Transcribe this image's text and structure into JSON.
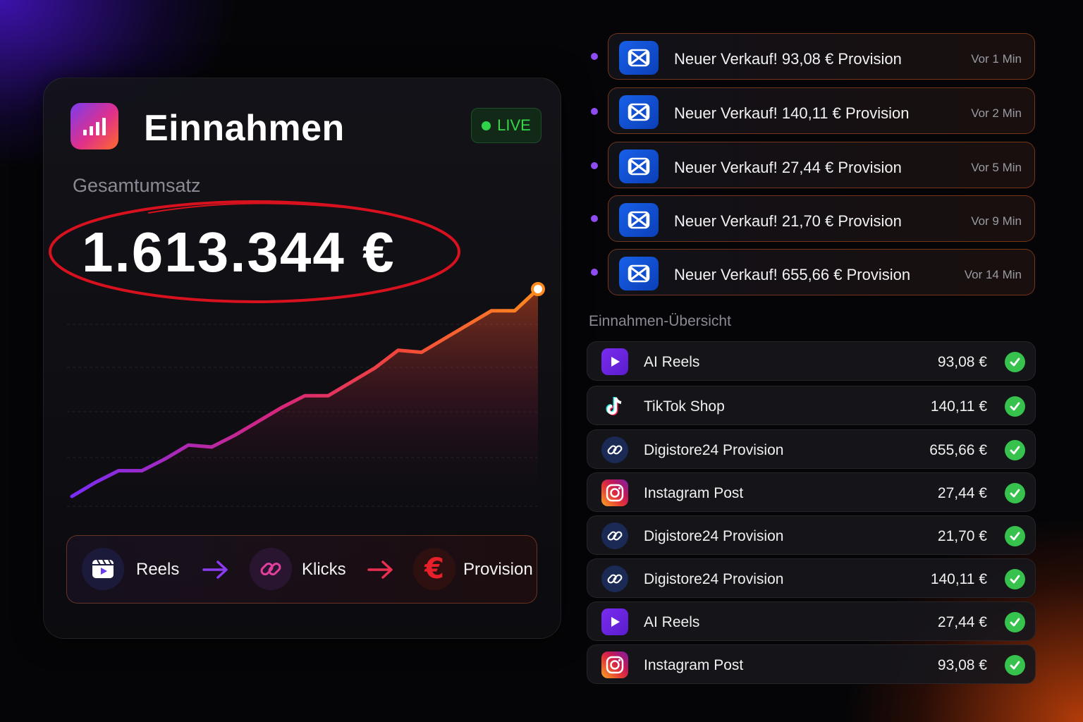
{
  "card": {
    "title": "Einnahmen",
    "live_label": "LIVE",
    "subtitle": "Gesamtumsatz",
    "total": "1.613.344 €"
  },
  "chart_data": {
    "type": "area",
    "title": "",
    "xlabel": "",
    "ylabel": "",
    "grid": true,
    "x": [
      0,
      1,
      2,
      3,
      4,
      5,
      6,
      7,
      8,
      9,
      10,
      11,
      12,
      13,
      14,
      15,
      16,
      17,
      18,
      19,
      20
    ],
    "values": [
      5,
      12,
      18,
      18,
      24,
      31,
      30,
      36,
      43,
      50,
      56,
      56,
      63,
      70,
      79,
      78,
      85,
      92,
      99,
      99,
      110
    ]
  },
  "flow": {
    "step1": "Reels",
    "step2": "Klicks",
    "step3": "Provision"
  },
  "notifications": [
    {
      "text": "Neuer Verkauf! 93,08 € Provision",
      "time": "Vor 1 Min"
    },
    {
      "text": "Neuer Verkauf! 140,11 € Provision",
      "time": "Vor 2 Min"
    },
    {
      "text": "Neuer Verkauf! 27,44 € Provision",
      "time": "Vor 5 Min"
    },
    {
      "text": "Neuer Verkauf! 21,70 € Provision",
      "time": "Vor 9 Min"
    },
    {
      "text": "Neuer Verkauf! 655,66 € Provision",
      "time": "Vor 14 Min"
    }
  ],
  "overview": {
    "title": "Einnahmen-Übersicht",
    "rows": [
      {
        "name": "AI Reels",
        "amount": "93,08 €",
        "icon": "play-icon"
      },
      {
        "name": "TikTok Shop",
        "amount": "140,11 €",
        "icon": "tiktok-icon"
      },
      {
        "name": "Digistore24 Provision",
        "amount": "655,66 €",
        "icon": "link-icon"
      },
      {
        "name": "Instagram Post",
        "amount": "27,44 €",
        "icon": "instagram-icon"
      },
      {
        "name": "Digistore24 Provision",
        "amount": "21,70 €",
        "icon": "link-icon"
      },
      {
        "name": "Digistore24 Provision",
        "amount": "140,11 €",
        "icon": "link-icon"
      },
      {
        "name": "AI Reels",
        "amount": "27,44 €",
        "icon": "play-icon"
      },
      {
        "name": "Instagram Post",
        "amount": "93,08 €",
        "icon": "instagram-icon"
      }
    ]
  },
  "colors": {
    "accent_purple": "#8e4cf2",
    "accent_orange": "#ff6a2a",
    "live_green": "#36d64a",
    "check_green": "#36c24c",
    "highlight_red": "#d8111e"
  }
}
